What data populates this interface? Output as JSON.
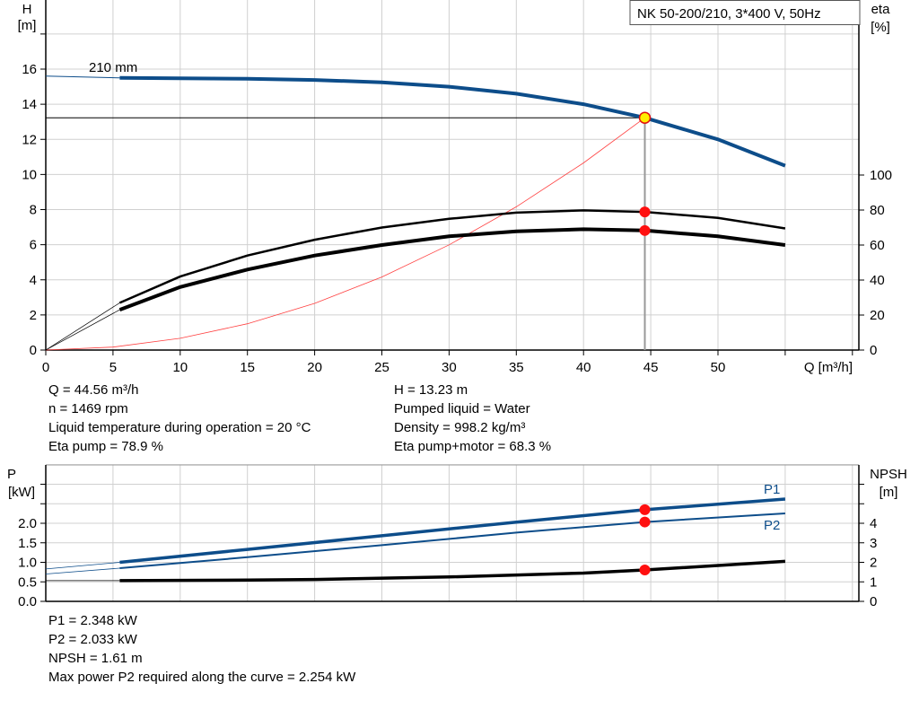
{
  "chart_data": [
    {
      "type": "line",
      "title": "NK 50-200/210, 3*400 V, 50Hz",
      "xlabel": "Q [m³/h]",
      "ylabel_left": [
        "H",
        "[m]"
      ],
      "ylabel_right": [
        "eta",
        "[%]"
      ],
      "xlim": [
        0,
        60
      ],
      "ylim_left": [
        0,
        20
      ],
      "ylim_right": [
        0,
        200
      ],
      "x_ticks": [
        "0",
        "5",
        "10",
        "15",
        "20",
        "25",
        "30",
        "35",
        "40",
        "45",
        "50"
      ],
      "y_ticks_left": [
        "0",
        "2",
        "4",
        "6",
        "8",
        "10",
        "12",
        "14",
        "16"
      ],
      "y_ticks_right": [
        "0",
        "20",
        "40",
        "60",
        "80",
        "100"
      ],
      "grid": true,
      "curve_label": "210 mm",
      "duty_point": {
        "Q": 44.56,
        "H": 13.23,
        "eta_pump": 78.9,
        "eta_pump_motor": 68.3
      },
      "series": [
        {
          "name": "210 mm",
          "axis": "left",
          "color": "#0d4d8a",
          "x": [
            0,
            5.5,
            10,
            15,
            20,
            25,
            30,
            35,
            40,
            44.56,
            50,
            55
          ],
          "y": [
            15.6,
            15.5,
            15.48,
            15.45,
            15.38,
            15.25,
            15.0,
            14.6,
            14.0,
            13.23,
            12.0,
            10.5
          ]
        },
        {
          "axis": "right",
          "color": "#000000",
          "x": [
            0,
            5.5,
            10,
            15,
            20,
            25,
            30,
            35,
            40,
            44.56,
            50,
            55
          ],
          "y": [
            0,
            27,
            42,
            54,
            63,
            70,
            75,
            78.5,
            79.8,
            78.9,
            75.5,
            69.5
          ]
        },
        {
          "axis": "right",
          "color": "#000000",
          "x": [
            0,
            5.5,
            10,
            15,
            20,
            25,
            30,
            35,
            40,
            44.56,
            50,
            55
          ],
          "y": [
            0,
            23,
            36,
            46,
            54,
            60,
            65,
            67.8,
            69,
            68.3,
            65,
            60
          ]
        },
        {
          "axis": "left",
          "color": "#ff4040",
          "x": [
            0,
            5,
            10,
            15,
            20,
            25,
            30,
            35,
            40,
            44.56
          ],
          "y": [
            0,
            0.17,
            0.67,
            1.5,
            2.66,
            4.16,
            5.99,
            8.16,
            10.66,
            13.23
          ]
        }
      ]
    },
    {
      "type": "line",
      "xlim": [
        0,
        60
      ],
      "ylabel_left": [
        "P",
        "[kW]"
      ],
      "ylabel_right": [
        "NPSH",
        "[m]"
      ],
      "ylim_left": [
        0,
        3.5
      ],
      "ylim_right": [
        0,
        7
      ],
      "y_ticks_left": [
        "0.0",
        "0.5",
        "1.0",
        "1.5",
        "2.0"
      ],
      "y_ticks_right": [
        "0",
        "1",
        "2",
        "3",
        "4"
      ],
      "grid": true,
      "duty_point": {
        "Q": 44.56,
        "P1": 2.348,
        "P2": 2.033,
        "NPSH": 1.61
      },
      "series": [
        {
          "name": "P1",
          "axis": "left",
          "color": "#0d4d8a",
          "x": [
            0,
            5.5,
            15,
            25,
            35,
            44.56,
            55
          ],
          "y": [
            0.83,
            1.0,
            1.33,
            1.68,
            2.03,
            2.348,
            2.62
          ]
        },
        {
          "name": "P2",
          "axis": "left",
          "color": "#0d4d8a",
          "x": [
            0,
            5.5,
            15,
            25,
            35,
            44.56,
            55
          ],
          "y": [
            0.7,
            0.85,
            1.13,
            1.44,
            1.76,
            2.033,
            2.254
          ]
        },
        {
          "axis": "right",
          "color": "#000000",
          "x": [
            0,
            5.5,
            15,
            20,
            30,
            40,
            44.56,
            55
          ],
          "y": [
            1.06,
            1.06,
            1.09,
            1.12,
            1.25,
            1.45,
            1.61,
            2.05
          ]
        }
      ]
    }
  ],
  "info_top_left": [
    "Q = 44.56 m³/h",
    "n = 1469 rpm",
    "Liquid temperature during operation = 20 °C",
    "Eta pump = 78.9 %"
  ],
  "info_top_right": [
    "H = 13.23 m",
    "Pumped liquid = Water",
    "Density = 998.2 kg/m³",
    "Eta pump+motor = 68.3 %"
  ],
  "info_bottom": [
    "P1 = 2.348 kW",
    "P2 = 2.033 kW",
    "NPSH = 1.61 m",
    "Max power P2 required along the curve = 2.254 kW"
  ]
}
